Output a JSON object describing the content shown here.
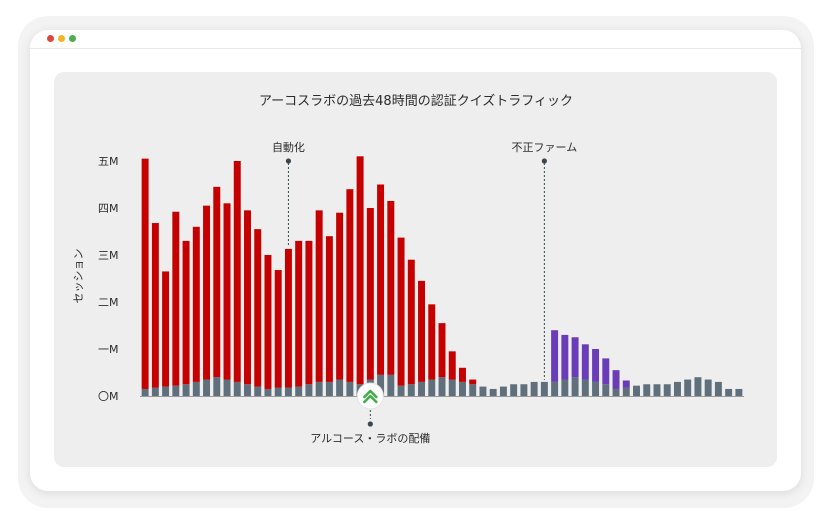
{
  "window": {
    "colors": {
      "close": "#e0443e",
      "minimize": "#f0b429",
      "maximize": "#4caf50"
    }
  },
  "chart_data": {
    "type": "bar",
    "stacked": true,
    "title": "アーコスラボの過去48時間の認証クイズトラフィック",
    "ylabel": "セッション",
    "xlabel": "",
    "ylim": [
      0,
      5
    ],
    "y_ticks": [
      {
        "value": 0,
        "label": "〇M"
      },
      {
        "value": 1,
        "label": "一M"
      },
      {
        "value": 2,
        "label": "二M"
      },
      {
        "value": 3,
        "label": "三M"
      },
      {
        "value": 4,
        "label": "四M"
      },
      {
        "value": 5,
        "label": "五M"
      }
    ],
    "grid": false,
    "series": [
      {
        "color": "#5f6f7c",
        "values": [
          0.15,
          0.18,
          0.2,
          0.22,
          0.25,
          0.3,
          0.35,
          0.4,
          0.35,
          0.3,
          0.25,
          0.2,
          0.15,
          0.18,
          0.18,
          0.2,
          0.25,
          0.3,
          0.3,
          0.35,
          0.3,
          0.25,
          0.35,
          0.45,
          0.45,
          0.22,
          0.25,
          0.3,
          0.35,
          0.4,
          0.35,
          0.3,
          0.25,
          0.2,
          0.15,
          0.2,
          0.25,
          0.25,
          0.3,
          0.3,
          0.3,
          0.35,
          0.4,
          0.35,
          0.3,
          0.25,
          0.15,
          0.18,
          0.22,
          0.25,
          0.25,
          0.25,
          0.3,
          0.35,
          0.4,
          0.35,
          0.3,
          0.15,
          0.15
        ]
      },
      {
        "color": "#c40000",
        "values": [
          4.9,
          3.5,
          2.45,
          3.7,
          3.05,
          3.3,
          3.7,
          4.05,
          3.75,
          4.7,
          3.7,
          3.35,
          2.85,
          2.5,
          2.95,
          3.1,
          3.05,
          3.65,
          3.1,
          3.55,
          4.1,
          4.85,
          3.65,
          4.05,
          3.7,
          3.15,
          2.65,
          2.15,
          1.6,
          1.15,
          0.6,
          0.3,
          0.1,
          0,
          0,
          0,
          0,
          0,
          0,
          0,
          0,
          0,
          0,
          0,
          0,
          0,
          0,
          0,
          0,
          0,
          0,
          0,
          0,
          0,
          0,
          0,
          0,
          0,
          0
        ]
      },
      {
        "color": "#6a3cb8",
        "values": [
          0,
          0,
          0,
          0,
          0,
          0,
          0,
          0,
          0,
          0,
          0,
          0,
          0,
          0,
          0,
          0,
          0,
          0,
          0,
          0,
          0,
          0,
          0,
          0,
          0,
          0,
          0,
          0,
          0,
          0,
          0,
          0,
          0,
          0,
          0,
          0,
          0,
          0,
          0,
          0,
          1.1,
          0.95,
          0.85,
          0.75,
          0.7,
          0.55,
          0.4,
          0.15,
          0,
          0,
          0,
          0,
          0,
          0,
          0,
          0,
          0,
          0,
          0
        ]
      }
    ],
    "annotations": [
      {
        "label": "自動化",
        "bar": 14,
        "position": "top"
      },
      {
        "label": "不正ファーム",
        "bar": 39,
        "position": "top"
      },
      {
        "label": "アルコース・ラボの配備",
        "bar": 22,
        "position": "bottom",
        "icon": "arkose-logo-icon"
      }
    ],
    "colors": {
      "text": "#2c2c2c",
      "axis": "#9a9a9a",
      "annotation_dot": "#3c4650",
      "logo": "#3fae49"
    }
  }
}
